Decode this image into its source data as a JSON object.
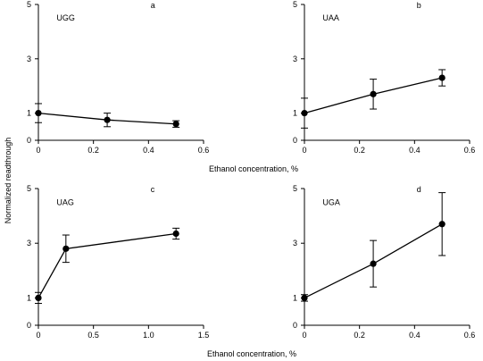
{
  "figure": {
    "ylabel": "Normalized readthrough",
    "xlabel_top": "Ethanol concentration, %",
    "xlabel_bottom": "Ethanol concentration, %"
  },
  "chart_data": [
    {
      "type": "scatter",
      "panel": "a",
      "codon": "UGG",
      "xlabel": "",
      "ylabel": "Normalized readthrough",
      "xlim": [
        0,
        0.6
      ],
      "ylim": [
        0,
        5
      ],
      "xticks": [
        "0",
        "0.2",
        "0.4",
        "0.6"
      ],
      "yticks": [
        "0",
        "1",
        "3",
        "5"
      ],
      "series": [
        {
          "x": [
            0,
            0.25,
            0.5
          ],
          "y": [
            1.0,
            0.75,
            0.6
          ],
          "err": [
            0.35,
            0.25,
            0.12
          ]
        }
      ]
    },
    {
      "type": "scatter",
      "panel": "b",
      "codon": "UAA",
      "xlabel": "",
      "ylabel": "",
      "xlim": [
        0,
        0.6
      ],
      "ylim": [
        0,
        5
      ],
      "xticks": [
        "0",
        "0.2",
        "0.4",
        "0.6"
      ],
      "yticks": [
        "0",
        "1",
        "3",
        "5"
      ],
      "series": [
        {
          "x": [
            0,
            0.25,
            0.5
          ],
          "y": [
            1.0,
            1.7,
            2.3
          ],
          "err": [
            0.55,
            0.55,
            0.3
          ]
        }
      ]
    },
    {
      "type": "scatter",
      "panel": "c",
      "codon": "UAG",
      "xlabel": "Ethanol concentration, %",
      "ylabel": "",
      "xlim": [
        0,
        1.5
      ],
      "ylim": [
        0,
        5
      ],
      "xticks": [
        "0",
        "0.5",
        "1.0",
        "1.5"
      ],
      "yticks": [
        "0",
        "1",
        "3",
        "5"
      ],
      "series": [
        {
          "x": [
            0,
            0.25,
            1.25
          ],
          "y": [
            1.0,
            2.8,
            3.35
          ],
          "err": [
            0.2,
            0.5,
            0.2
          ]
        }
      ]
    },
    {
      "type": "scatter",
      "panel": "d",
      "codon": "UGA",
      "xlabel": "",
      "ylabel": "",
      "xlim": [
        0,
        0.6
      ],
      "ylim": [
        0,
        5
      ],
      "xticks": [
        "0",
        "0.2",
        "0.4",
        "0.6"
      ],
      "yticks": [
        "0",
        "1",
        "3",
        "5"
      ],
      "series": [
        {
          "x": [
            0,
            0.25,
            0.5
          ],
          "y": [
            1.0,
            2.25,
            3.7
          ],
          "err": [
            0.12,
            0.85,
            1.15
          ]
        }
      ]
    }
  ]
}
